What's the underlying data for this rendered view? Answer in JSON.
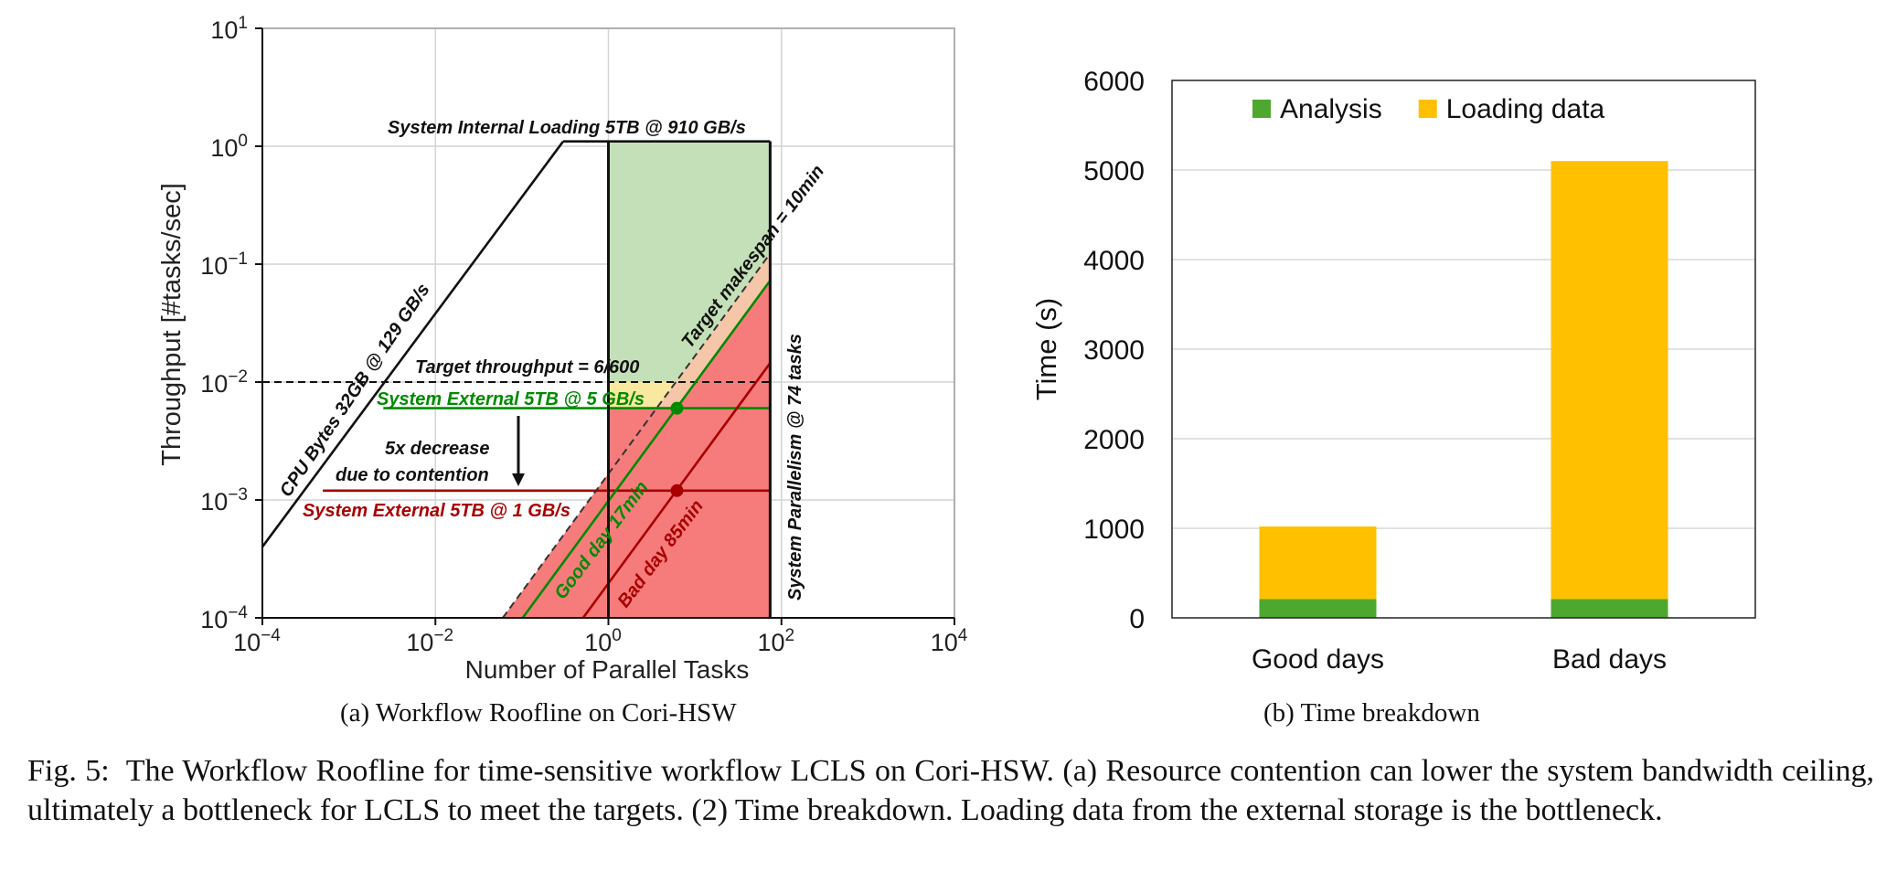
{
  "figure": {
    "label": "Fig. 5:",
    "caption": "The Workflow Roofline for time-sensitive workflow LCLS on Cori-HSW. (a) Resource contention can lower the system bandwidth ceiling, ultimately a bottleneck for LCLS to meet the targets. (2) Time breakdown. Loading data from the external storage is the bottleneck."
  },
  "chart_data": [
    {
      "type": "line",
      "subcaption": "(a) Workflow Roofline on Cori-HSW",
      "xlabel": "Number of Parallel Tasks",
      "ylabel": "Throughput [#tasks/sec]",
      "xscale": "log",
      "yscale": "log",
      "xlim": [
        0.0001,
        10000
      ],
      "ylim": [
        0.0001,
        10
      ],
      "x_ticks": [
        {
          "base": "10",
          "exp": "−4",
          "value": 0.0001
        },
        {
          "base": "10",
          "exp": "−2",
          "value": 0.01
        },
        {
          "base": "10",
          "exp": "0",
          "value": 1
        },
        {
          "base": "10",
          "exp": "2",
          "value": 100
        },
        {
          "base": "10",
          "exp": "4",
          "value": 10000
        }
      ],
      "y_ticks": [
        {
          "base": "10",
          "exp": "−4",
          "value": 0.0001
        },
        {
          "base": "10",
          "exp": "−3",
          "value": 0.001
        },
        {
          "base": "10",
          "exp": "−2",
          "value": 0.01
        },
        {
          "base": "10",
          "exp": "−1",
          "value": 0.1
        },
        {
          "base": "10",
          "exp": "0",
          "value": 1
        },
        {
          "base": "10",
          "exp": "1",
          "value": 10
        }
      ],
      "grid": true,
      "colors": {
        "black": "#111111",
        "green": "#008a00",
        "red": "#a80000",
        "green_fill": "#c4e0b8",
        "peach_fill": "#f5c7a8",
        "yellow_fill": "#f9e8a0",
        "red_fill": "#f67c7c"
      },
      "ceilings": [
        {
          "label": "CPU Bytes  32GB @ 129 GB/s",
          "color": "#111111",
          "points": [
            [
              0.0001,
              0.0004
            ],
            [
              0.3,
              1.1
            ]
          ]
        },
        {
          "label": "System Internal Loading 5TB @ 910 GB/s",
          "color": "#111111",
          "points": [
            [
              0.3,
              1.1
            ],
            [
              74,
              1.1
            ]
          ]
        },
        {
          "label": "System External 5TB @ 5 GB/s",
          "color": "#008a00",
          "points": [
            [
              0.0025,
              0.006
            ],
            [
              74,
              0.006
            ]
          ]
        },
        {
          "label": "System External 5TB @ 1 GB/s",
          "color": "#a80000",
          "points": [
            [
              0.0005,
              0.0012
            ],
            [
              74,
              0.0012
            ]
          ]
        },
        {
          "label": "Target throughput = 6/600",
          "color": "#111111",
          "dashed": true,
          "points": [
            [
              0.0001,
              0.01
            ],
            [
              74,
              0.01
            ]
          ]
        },
        {
          "label": "Target makespan = 10min",
          "color": "#333333",
          "dashed": true,
          "points": [
            [
              0.06,
              0.0001
            ],
            [
              74,
              0.123
            ]
          ]
        },
        {
          "label": "Good day 17min",
          "color": "#008a00",
          "points": [
            [
              0.102,
              0.0001
            ],
            [
              74,
              0.0725
            ]
          ]
        },
        {
          "label": "Bad day 85min",
          "color": "#a80000",
          "points": [
            [
              0.51,
              0.0001
            ],
            [
              74,
              0.0145
            ]
          ]
        },
        {
          "label": "System Parallelism  @ 74 tasks",
          "color": "#111111",
          "points": [
            [
              74,
              0.0001
            ],
            [
              74,
              1.1
            ]
          ]
        }
      ],
      "vertical_line": {
        "x": 1,
        "from": 0.0001,
        "to": 1.1
      },
      "markers": [
        {
          "name": "good day point",
          "x": 6.2,
          "y": 0.006,
          "color": "#008a00"
        },
        {
          "name": "bad day point",
          "x": 6.2,
          "y": 0.0012,
          "color": "#a80000"
        }
      ],
      "annotations": {
        "cpu_bytes": "CPU Bytes  32GB @ 129 GB/s",
        "internal": "System Internal Loading 5TB @ 910 GB/s",
        "target_throughput": "Target throughput = 6/600",
        "external_5": "System External 5TB @ 5 GB/s",
        "decrease_1": "5x decrease",
        "decrease_2": "due to contention",
        "external_1": "System External 5TB @ 1 GB/s",
        "target_makespan": "Target makespan = 10min",
        "good_day": "Good day 17min",
        "bad_day": "Bad day 85min",
        "parallelism": "System Parallelism  @ 74 tasks"
      }
    },
    {
      "type": "bar",
      "stacked": true,
      "subcaption": "(b) Time breakdown",
      "ylabel": "Time (s)",
      "categories": [
        "Good days",
        "Bad days"
      ],
      "series": [
        {
          "name": "Analysis",
          "color": "#4ea72e",
          "values": [
            210,
            210
          ]
        },
        {
          "name": "Loading data",
          "color": "#ffc000",
          "values": [
            810,
            4890
          ]
        }
      ],
      "ylim": [
        0,
        6000
      ],
      "y_ticks": [
        0,
        1000,
        2000,
        3000,
        4000,
        5000,
        6000
      ],
      "grid": true,
      "legend": "top"
    }
  ]
}
